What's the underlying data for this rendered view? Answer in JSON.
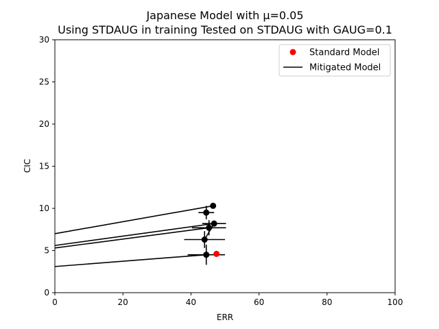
{
  "chart_data": {
    "type": "scatter",
    "title": "Japanese Model with μ=0.05",
    "subtitle": "Using STDAUG in training Tested on STDAUG with GAUG=0.1",
    "xlabel": "ERR",
    "ylabel": "CIC",
    "xlim": [
      0,
      100
    ],
    "ylim": [
      0,
      30
    ],
    "xticks": [
      0,
      20,
      40,
      60,
      80,
      100
    ],
    "yticks": [
      0,
      5,
      10,
      15,
      20,
      25,
      30
    ],
    "grid": false,
    "legend_position": "top-right",
    "legend": [
      {
        "label": "Standard Model",
        "marker": "point",
        "color": "#ff0000"
      },
      {
        "label": "Mitigated Model",
        "marker": "line",
        "color": "#000000"
      }
    ],
    "standard_point": {
      "x": 47.5,
      "y": 4.6,
      "color": "#ff0000"
    },
    "mitigated_points": [
      {
        "x": 46.5,
        "y": 10.3,
        "xerr": 0,
        "yerr": 0
      },
      {
        "x": 44.5,
        "y": 9.5,
        "xerr": 2.3,
        "yerr": 0.8
      },
      {
        "x": 46.8,
        "y": 8.2,
        "xerr": 3.5,
        "yerr": 0
      },
      {
        "x": 45.3,
        "y": 7.7,
        "xerr": 5.0,
        "yerr": 0.9
      },
      {
        "x": 44.0,
        "y": 6.3,
        "xerr": 6.0,
        "yerr": 1.0
      },
      {
        "x": 44.5,
        "y": 4.5,
        "xerr": 5.5,
        "yerr": 1.2
      }
    ],
    "mitigated_lines": [
      {
        "from": [
          0,
          7.0
        ],
        "to": [
          46.5,
          10.3
        ]
      },
      {
        "from": [
          0,
          5.6
        ],
        "to": [
          46.8,
          8.2
        ]
      },
      {
        "from": [
          0,
          5.3
        ],
        "to": [
          45.3,
          7.7
        ]
      },
      {
        "from": [
          0,
          3.1
        ],
        "to": [
          44.5,
          4.5
        ]
      },
      {
        "from": [
          46.8,
          8.2
        ],
        "to": [
          44.0,
          6.3
        ]
      }
    ],
    "colors": {
      "mitigated": "#000000",
      "standard": "#ff0000",
      "axes": "#000000"
    }
  }
}
